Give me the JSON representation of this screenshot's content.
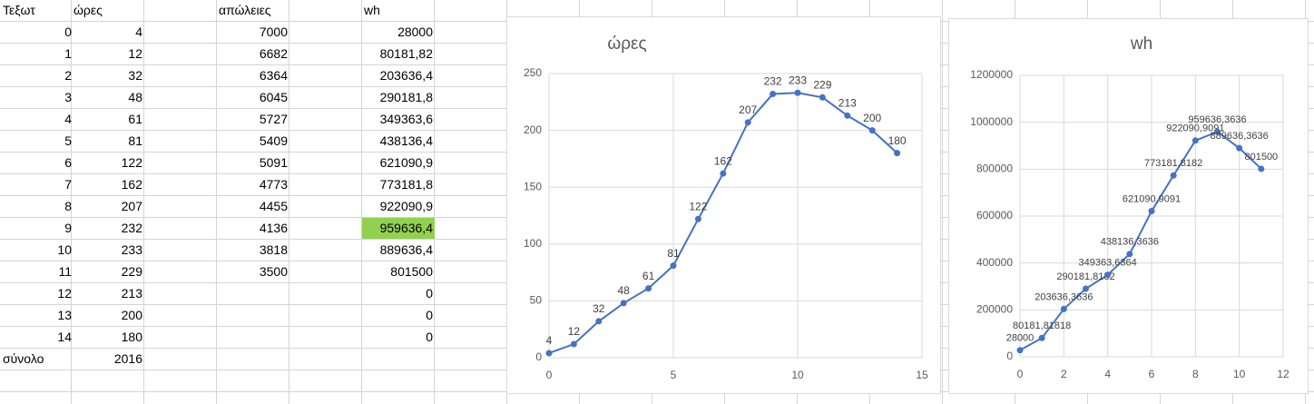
{
  "table": {
    "columns": [
      "Τεξωτ",
      "ώρες",
      "απώλειες",
      "wh"
    ],
    "rows": [
      [
        "0",
        "4",
        "7000",
        "28000"
      ],
      [
        "1",
        "12",
        "6682",
        "80181,82"
      ],
      [
        "2",
        "32",
        "6364",
        "203636,4"
      ],
      [
        "3",
        "48",
        "6045",
        "290181,8"
      ],
      [
        "4",
        "61",
        "5727",
        "349363,6"
      ],
      [
        "5",
        "81",
        "5409",
        "438136,4"
      ],
      [
        "6",
        "122",
        "5091",
        "621090,9"
      ],
      [
        "7",
        "162",
        "4773",
        "773181,8"
      ],
      [
        "8",
        "207",
        "4455",
        "922090,9"
      ],
      [
        "9",
        "232",
        "4136",
        "959636,4"
      ],
      [
        "10",
        "233",
        "3818",
        "889636,4"
      ],
      [
        "11",
        "229",
        "3500",
        "801500"
      ],
      [
        "12",
        "213",
        null,
        "0"
      ],
      [
        "13",
        "200",
        null,
        "0"
      ],
      [
        "14",
        "180",
        null,
        "0"
      ]
    ],
    "footer": [
      "σύνολο",
      "2016"
    ],
    "highlight": {
      "row": 9,
      "col": 3,
      "color": "#92d050"
    }
  },
  "chart_data": [
    {
      "type": "line",
      "title": "ώρες",
      "color": "#4472c4",
      "grid": true,
      "x": [
        0,
        1,
        2,
        3,
        4,
        5,
        6,
        7,
        8,
        9,
        10,
        11,
        12,
        13,
        14
      ],
      "values": [
        4,
        12,
        32,
        48,
        61,
        81,
        122,
        162,
        207,
        232,
        233,
        229,
        213,
        200,
        180
      ],
      "xlim": [
        0,
        15
      ],
      "xticks": [
        0,
        5,
        10,
        15
      ],
      "ylim": [
        0,
        250
      ],
      "yticks": [
        0,
        50,
        100,
        150,
        200,
        250
      ]
    },
    {
      "type": "line",
      "title": "wh",
      "color": "#4472c4",
      "grid": true,
      "x": [
        0,
        1,
        2,
        3,
        4,
        5,
        6,
        7,
        8,
        9,
        10,
        11
      ],
      "values": [
        28000,
        80181.81818,
        203636.3636,
        290181.8182,
        349363.6364,
        438136.3636,
        621090.9091,
        773181.8182,
        922090.9091,
        959636.3636,
        889636.3636,
        801500
      ],
      "value_labels": [
        "28000",
        "80181,81818",
        "203636,3636",
        "290181,8182",
        "349363,6364",
        "438136,3636",
        "621090,9091",
        "773181,8182",
        "922090,9091",
        "959636,3636",
        "889636,3636",
        "801500"
      ],
      "xlim": [
        0,
        12
      ],
      "xticks": [
        0,
        2,
        4,
        6,
        8,
        10,
        12
      ],
      "ylim": [
        0,
        1200000
      ],
      "yticks": [
        0,
        200000,
        400000,
        600000,
        800000,
        1000000,
        1200000
      ]
    }
  ]
}
